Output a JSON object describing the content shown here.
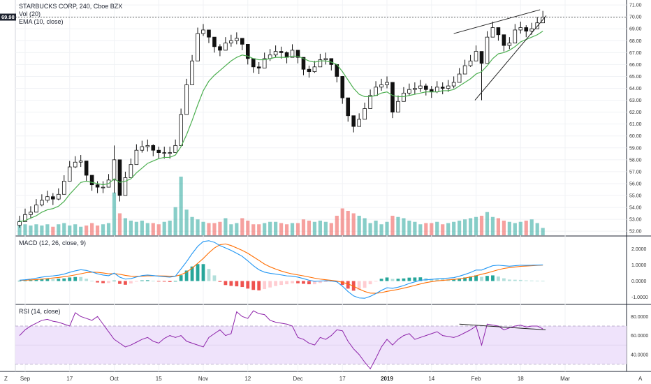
{
  "header": {
    "title": "STARBUCKS CORP, 240, Cboe BZX",
    "vol_label": "Vol (20)",
    "ema_label": "EMA (10, close)",
    "last_price": "69.98"
  },
  "macd": {
    "label": "MACD (12, 26, close, 9)"
  },
  "rsi": {
    "label": "RSI (14, close)"
  },
  "corner": {
    "left": "Z",
    "right": "A"
  },
  "colors": {
    "up": "#26a69a",
    "down": "#ef5350",
    "ema": "#4caf50",
    "macd": "#2196f3",
    "signal": "#ff6d00",
    "rsi": "#8e24aa",
    "rsi_band": "#efe3fb",
    "candle": "#111111"
  },
  "chart_data": [
    {
      "type": "candlestick",
      "name": "price",
      "ylim": [
        51.6,
        71.3
      ],
      "y_ticks": [
        "71.00",
        "70.00",
        "69.00",
        "68.00",
        "67.00",
        "66.00",
        "65.00",
        "64.00",
        "63.00",
        "62.00",
        "61.00",
        "60.00",
        "59.00",
        "58.00",
        "57.00",
        "56.00",
        "55.00",
        "54.00",
        "53.00",
        "52.00"
      ],
      "x_ticks": [
        "Sep",
        "17",
        "Oct",
        "15",
        "Nov",
        "12",
        "Dec",
        "17",
        "2019",
        "14",
        "Feb",
        "18",
        "Mar"
      ],
      "closes": [
        52.8,
        53.4,
        53.6,
        54.2,
        54.6,
        54.9,
        54.7,
        55.1,
        56.2,
        57.4,
        57.8,
        57.9,
        56.7,
        55.9,
        55.7,
        55.7,
        56.3,
        58.0,
        55.0,
        56.5,
        57.6,
        58.8,
        59.1,
        59.2,
        58.8,
        58.6,
        58.6,
        58.6,
        59.2,
        61.8,
        64.3,
        66.3,
        68.6,
        68.9,
        68.3,
        67.5,
        67.2,
        67.8,
        68.0,
        68.2,
        67.7,
        66.5,
        65.8,
        65.7,
        66.5,
        66.8,
        67.1,
        67.0,
        66.6,
        67.2,
        66.6,
        65.6,
        65.4,
        65.8,
        66.4,
        66.5,
        66.0,
        65.0,
        63.2,
        61.7,
        60.8,
        61.4,
        62.3,
        63.4,
        64.1,
        64.3,
        64.5,
        62.0,
        62.9,
        63.6,
        63.9,
        64.0,
        64.2,
        63.9,
        63.7,
        64.1,
        64.0,
        64.2,
        64.5,
        65.2,
        65.9,
        66.3,
        67.1,
        66.1,
        68.3,
        69.1,
        68.5,
        67.6,
        67.8,
        68.9,
        69.1,
        68.8,
        69.0,
        69.5,
        69.98
      ],
      "highs": [
        53.3,
        53.9,
        54.1,
        54.7,
        55.1,
        55.4,
        55.2,
        55.6,
        56.7,
        57.9,
        58.3,
        58.4,
        57.2,
        56.4,
        56.2,
        56.2,
        56.8,
        59.2,
        56.6,
        57.0,
        58.1,
        59.3,
        59.6,
        59.7,
        59.3,
        59.1,
        59.1,
        59.1,
        59.7,
        62.3,
        64.8,
        66.8,
        69.1,
        69.4,
        68.8,
        68.0,
        67.7,
        68.3,
        68.5,
        68.7,
        68.2,
        67.0,
        66.3,
        66.2,
        67.0,
        67.3,
        67.6,
        67.5,
        67.1,
        67.7,
        67.1,
        66.1,
        65.9,
        66.3,
        66.9,
        67.0,
        66.5,
        65.5,
        63.7,
        62.2,
        61.3,
        61.9,
        62.8,
        63.9,
        64.6,
        64.8,
        65.0,
        62.5,
        63.4,
        64.1,
        64.4,
        64.5,
        64.7,
        64.4,
        64.2,
        64.6,
        64.5,
        64.7,
        65.0,
        65.7,
        66.4,
        66.8,
        67.6,
        66.6,
        68.8,
        69.6,
        69.0,
        68.1,
        68.3,
        69.4,
        69.6,
        69.3,
        69.5,
        70.0,
        70.5
      ],
      "lows": [
        52.3,
        52.9,
        53.1,
        53.7,
        54.1,
        54.4,
        54.2,
        54.6,
        55.7,
        56.9,
        57.3,
        57.4,
        56.2,
        55.4,
        55.2,
        55.2,
        55.8,
        55.2,
        54.5,
        55.5,
        57.1,
        58.3,
        58.6,
        58.7,
        58.3,
        58.1,
        58.1,
        58.1,
        58.7,
        61.3,
        63.8,
        65.8,
        67.3,
        68.4,
        67.8,
        67.0,
        66.7,
        67.3,
        67.5,
        67.7,
        67.2,
        66.0,
        65.3,
        65.2,
        66.0,
        66.3,
        66.6,
        66.5,
        66.1,
        66.7,
        66.1,
        65.1,
        64.9,
        65.3,
        65.9,
        66.0,
        65.5,
        64.5,
        62.7,
        61.2,
        60.3,
        60.9,
        61.8,
        62.9,
        63.6,
        63.8,
        64.0,
        61.5,
        62.4,
        63.1,
        63.4,
        63.5,
        63.7,
        63.4,
        63.2,
        63.6,
        63.5,
        63.7,
        64.0,
        64.7,
        65.4,
        65.8,
        66.6,
        63.0,
        67.8,
        68.6,
        68.0,
        67.1,
        67.3,
        68.4,
        68.6,
        68.3,
        68.5,
        69.0,
        69.5
      ],
      "ema_10": [
        52.8,
        52.9,
        53.1,
        53.3,
        53.6,
        53.8,
        53.9,
        54.1,
        54.5,
        55.1,
        55.6,
        56.1,
        56.2,
        56.1,
        56.0,
        55.9,
        56.0,
        56.4,
        56.1,
        56.2,
        56.4,
        56.9,
        57.3,
        57.7,
        57.9,
        58.1,
        58.2,
        58.2,
        58.4,
        59.1,
        60.1,
        61.3,
        62.6,
        63.8,
        64.6,
        65.1,
        65.5,
        65.9,
        66.3,
        66.6,
        66.8,
        66.7,
        66.5,
        66.4,
        66.4,
        66.5,
        66.6,
        66.6,
        66.6,
        66.7,
        66.7,
        66.5,
        66.3,
        66.2,
        66.3,
        66.3,
        66.2,
        66.0,
        65.4,
        64.7,
        64.0,
        63.5,
        63.3,
        63.3,
        63.4,
        63.6,
        63.7,
        63.4,
        63.3,
        63.3,
        63.4,
        63.5,
        63.6,
        63.7,
        63.7,
        63.7,
        63.8,
        63.8,
        63.9,
        64.2,
        64.5,
        64.8,
        65.2,
        65.4,
        65.9,
        66.5,
        66.9,
        67.0,
        67.2,
        67.5,
        67.9,
        68.1,
        68.3,
        68.5,
        68.8
      ],
      "volume": [
        1.2,
        0.9,
        0.8,
        0.9,
        0.8,
        0.9,
        0.7,
        0.9,
        1.0,
        0.8,
        0.9,
        0.7,
        0.8,
        1.0,
        0.8,
        0.9,
        1.0,
        3.5,
        1.8,
        1.4,
        1.2,
        1.1,
        1.2,
        1.0,
        1.0,
        0.9,
        1.1,
        1.2,
        2.3,
        4.8,
        2.1,
        1.5,
        1.3,
        1.1,
        1.0,
        1.0,
        1.1,
        1.4,
        0.9,
        1.0,
        1.4,
        1.2,
        0.9,
        0.9,
        1.0,
        1.1,
        1.1,
        1.0,
        0.9,
        1.0,
        1.0,
        1.3,
        1.2,
        1.1,
        1.2,
        1.1,
        1.0,
        1.6,
        2.2,
        2.0,
        1.8,
        1.6,
        1.4,
        1.0,
        1.2,
        0.9,
        1.1,
        1.6,
        1.5,
        1.4,
        1.2,
        1.1,
        0.9,
        1.0,
        1.0,
        1.1,
        0.9,
        1.0,
        1.1,
        1.2,
        1.3,
        1.4,
        1.5,
        1.6,
        1.9,
        1.5,
        1.4,
        1.2,
        1.1,
        1.0,
        1.1,
        1.2,
        1.3,
        1.0,
        0.6
      ],
      "annotations": [
        {
          "type": "trendline",
          "from": [
            78,
            68.6
          ],
          "to": [
            93.5,
            70.6
          ]
        },
        {
          "type": "trendline",
          "from": [
            81.8,
            63.0
          ],
          "to": [
            94.6,
            70.1
          ]
        }
      ]
    },
    {
      "type": "line",
      "name": "MACD",
      "ylim": [
        -1.45,
        2.75
      ],
      "y_ticks": [
        "2.0000",
        "1.0000",
        "0.0000",
        "-1.0000"
      ],
      "series": [
        {
          "name": "MACD",
          "values": [
            0.05,
            0.08,
            0.12,
            0.18,
            0.24,
            0.29,
            0.32,
            0.36,
            0.43,
            0.54,
            0.63,
            0.7,
            0.66,
            0.56,
            0.45,
            0.37,
            0.33,
            0.49,
            0.24,
            0.12,
            0.15,
            0.25,
            0.34,
            0.37,
            0.34,
            0.3,
            0.27,
            0.24,
            0.3,
            0.75,
            1.2,
            1.7,
            2.15,
            2.45,
            2.5,
            2.4,
            2.2,
            2.05,
            1.9,
            1.72,
            1.53,
            1.25,
            0.95,
            0.7,
            0.55,
            0.48,
            0.43,
            0.38,
            0.32,
            0.3,
            0.24,
            0.15,
            0.05,
            -0.02,
            0.0,
            0.02,
            0.0,
            -0.05,
            -0.32,
            -0.65,
            -0.92,
            -1.05,
            -1.07,
            -0.95,
            -0.78,
            -0.58,
            -0.42,
            -0.45,
            -0.38,
            -0.28,
            -0.15,
            -0.05,
            0.05,
            0.08,
            0.1,
            0.14,
            0.16,
            0.18,
            0.21,
            0.3,
            0.41,
            0.53,
            0.68,
            0.68,
            0.82,
            0.95,
            0.98,
            0.95,
            0.92,
            0.95,
            0.98,
            0.97,
            0.98,
            0.99,
            1.0
          ]
        },
        {
          "name": "Signal",
          "values": [
            0.04,
            0.05,
            0.07,
            0.09,
            0.12,
            0.15,
            0.19,
            0.22,
            0.27,
            0.32,
            0.38,
            0.45,
            0.52,
            0.55,
            0.54,
            0.5,
            0.45,
            0.46,
            0.42,
            0.35,
            0.3,
            0.29,
            0.3,
            0.32,
            0.33,
            0.32,
            0.31,
            0.3,
            0.3,
            0.39,
            0.55,
            0.8,
            1.1,
            1.4,
            1.75,
            2.05,
            2.25,
            2.3,
            2.2,
            2.05,
            1.9,
            1.72,
            1.5,
            1.28,
            1.05,
            0.88,
            0.74,
            0.62,
            0.52,
            0.44,
            0.38,
            0.32,
            0.25,
            0.18,
            0.12,
            0.08,
            0.04,
            0.0,
            -0.08,
            -0.18,
            -0.32,
            -0.5,
            -0.65,
            -0.75,
            -0.76,
            -0.72,
            -0.64,
            -0.58,
            -0.52,
            -0.44,
            -0.36,
            -0.27,
            -0.18,
            -0.1,
            -0.04,
            0.01,
            0.04,
            0.07,
            0.1,
            0.14,
            0.19,
            0.25,
            0.33,
            0.42,
            0.5,
            0.6,
            0.7,
            0.78,
            0.83,
            0.87,
            0.91,
            0.93,
            0.95,
            0.97,
            0.99
          ]
        }
      ]
    },
    {
      "type": "line",
      "name": "RSI",
      "ylim": [
        23,
        92
      ],
      "y_ticks": [
        "80.0000",
        "60.0000",
        "40.0000"
      ],
      "bands": [
        30,
        70
      ],
      "series": [
        {
          "name": "RSI",
          "values": [
            60,
            66,
            70,
            73,
            76,
            77,
            75,
            74,
            72,
            70,
            84,
            80,
            78,
            76,
            80,
            72,
            64,
            56,
            52,
            48,
            50,
            53,
            56,
            58,
            54,
            52,
            57,
            60,
            58,
            60,
            54,
            52,
            50,
            48,
            58,
            62,
            66,
            60,
            62,
            85,
            80,
            78,
            86,
            83,
            82,
            76,
            74,
            73,
            72,
            70,
            58,
            56,
            52,
            50,
            58,
            56,
            60,
            66,
            65,
            54,
            46,
            40,
            32,
            25,
            36,
            48,
            56,
            50,
            56,
            60,
            62,
            56,
            58,
            60,
            62,
            64,
            60,
            59,
            58,
            60,
            63,
            66,
            70,
            50,
            72,
            71,
            70,
            66,
            68,
            70,
            71,
            69,
            70,
            70,
            67
          ]
        },
        {
          "name": "trend",
          "values": []
        }
      ],
      "annotations": [
        {
          "type": "trendline",
          "from": [
            79,
            72
          ],
          "to": [
            94.5,
            66
          ]
        }
      ]
    }
  ]
}
